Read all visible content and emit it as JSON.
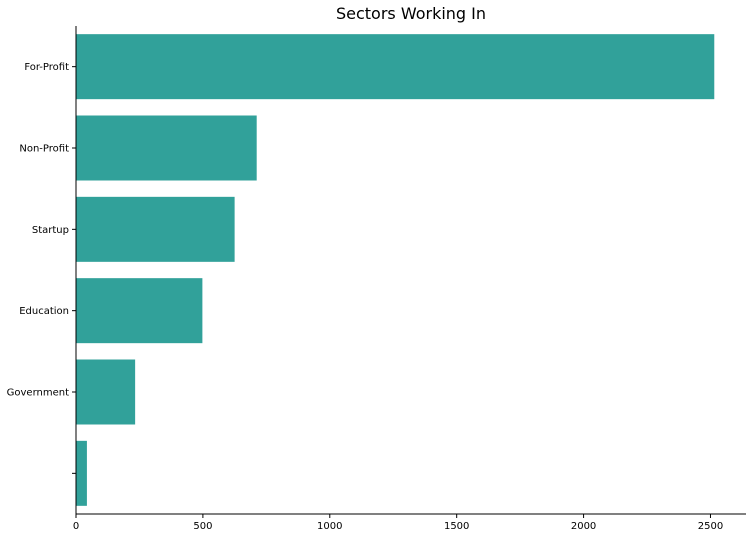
{
  "chart_data": {
    "type": "bar",
    "orientation": "horizontal",
    "title": "Sectors Working In",
    "xlabel": "",
    "ylabel": "",
    "categories": [
      "For-Profit",
      "Non-Profit",
      "Startup",
      "Education",
      "Government",
      ""
    ],
    "values": [
      2515,
      712,
      625,
      498,
      233,
      43
    ],
    "xlim": [
      0,
      2640
    ],
    "xticks": [
      0,
      500,
      1000,
      1500,
      2000,
      2500
    ],
    "grid": false,
    "bar_color": "#31a19a",
    "axis_color": "#000000"
  }
}
